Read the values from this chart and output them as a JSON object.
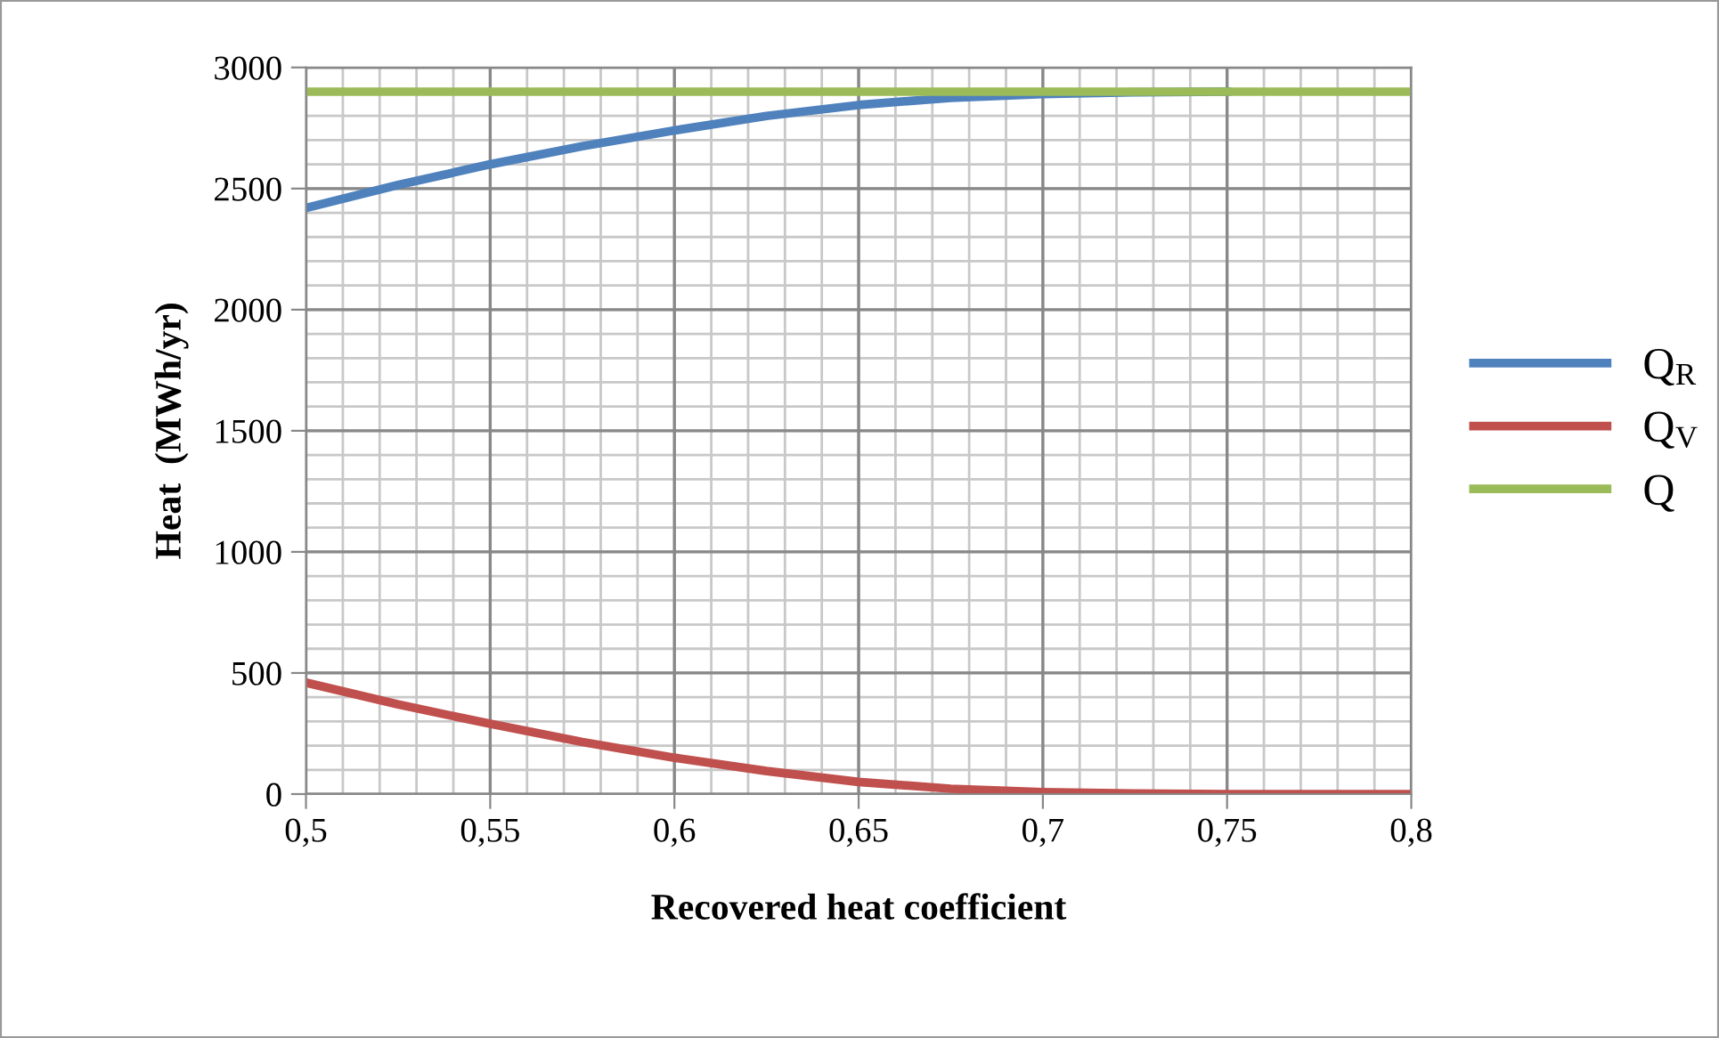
{
  "chart_data": {
    "type": "line",
    "xlabel": "Recovered heat coefficient",
    "ylabel": "Heat  (MWh/yr)",
    "x": [
      0.5,
      0.525,
      0.55,
      0.575,
      0.6,
      0.625,
      0.65,
      0.675,
      0.7,
      0.725,
      0.75,
      0.775,
      0.8
    ],
    "series": [
      {
        "name": "Q$_{R}$",
        "color": "#4f81bd",
        "values": [
          2420,
          2515,
          2600,
          2675,
          2740,
          2800,
          2845,
          2875,
          2890,
          2898,
          2900,
          null,
          null
        ]
      },
      {
        "name": "Q$_{V}$",
        "color": "#c0504d",
        "values": [
          460,
          370,
          290,
          215,
          150,
          95,
          50,
          22,
          8,
          2,
          0,
          0,
          0
        ]
      },
      {
        "name": "Q",
        "color": "#9bbb59",
        "values": [
          2900,
          2900,
          2900,
          2900,
          2900,
          2900,
          2900,
          2900,
          2900,
          2900,
          2900,
          2900,
          2900
        ]
      }
    ],
    "xlim": [
      0.5,
      0.8
    ],
    "ylim": [
      0,
      3000
    ],
    "xticks": [
      {
        "value": 0.5,
        "label": "0,5"
      },
      {
        "value": 0.55,
        "label": "0,55"
      },
      {
        "value": 0.6,
        "label": "0,6"
      },
      {
        "value": 0.65,
        "label": "0,65"
      },
      {
        "value": 0.7,
        "label": "0,7"
      },
      {
        "value": 0.75,
        "label": "0,75"
      },
      {
        "value": 0.8,
        "label": "0,8"
      }
    ],
    "yticks": [
      0,
      500,
      1000,
      1500,
      2000,
      2500,
      3000
    ],
    "grid": true,
    "legend": "right",
    "marker": "none",
    "line_style": "solid"
  }
}
